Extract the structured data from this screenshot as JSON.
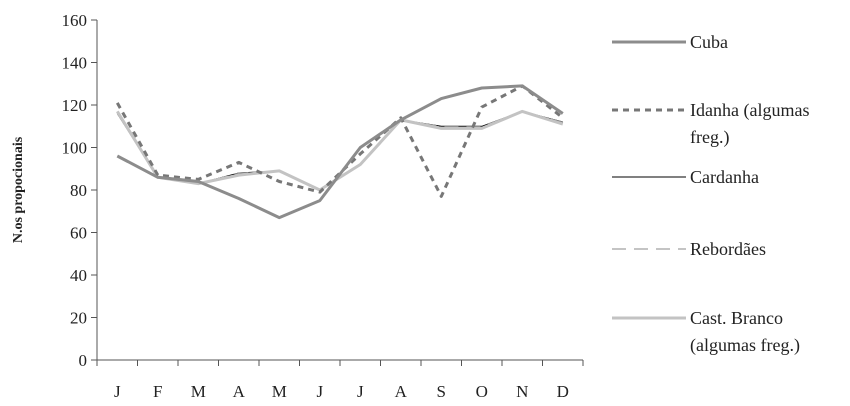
{
  "chart_data": {
    "type": "line",
    "categories": [
      "J",
      "F",
      "M",
      "A",
      "M",
      "J",
      "J",
      "A",
      "S",
      "O",
      "N",
      "D"
    ],
    "yticks": [
      "0",
      "20",
      "40",
      "60",
      "80",
      "100",
      "120",
      "140",
      "160"
    ],
    "ylim": [
      0,
      160
    ],
    "ylabel": "N.os propocionais",
    "xlabel": "",
    "title": "",
    "grid": false,
    "legend_position": "right",
    "series": [
      {
        "name": "Cuba",
        "legend_lines": [
          "Cuba"
        ],
        "color": "#8c8c8c",
        "dash": "solid",
        "values": [
          96,
          86,
          84,
          76,
          67,
          75,
          100,
          113,
          123,
          128,
          129,
          116
        ]
      },
      {
        "name": "Idanha (algumas freg.)",
        "legend_lines": [
          "Idanha (algumas",
          "freg.)"
        ],
        "color": "#777777",
        "dash": "dotted",
        "values": [
          121,
          87,
          85,
          93,
          84,
          79,
          97,
          114,
          77,
          119,
          129,
          114
        ]
      },
      {
        "name": "Cardanha",
        "legend_lines": [
          "Cardanha"
        ],
        "color": "#000000",
        "dash": "solid-thin",
        "values": [
          116,
          86,
          83,
          88,
          89,
          80,
          92,
          113,
          110,
          110,
          117,
          112
        ]
      },
      {
        "name": "Rebordães",
        "legend_lines": [
          "Rebordães"
        ],
        "color": "#888888",
        "dash": "dashed",
        "values": [
          116,
          86,
          83,
          88,
          89,
          80,
          92,
          113,
          110,
          110,
          117,
          112
        ]
      },
      {
        "name": "Cast. Branco (algumas freg.)",
        "legend_lines": [
          "Cast. Branco",
          "(algumas freg.)"
        ],
        "color": "#c3c3c3",
        "dash": "solid",
        "values": [
          117,
          86,
          83,
          87,
          89,
          80,
          92,
          113,
          109,
          109,
          117,
          111
        ]
      }
    ]
  }
}
